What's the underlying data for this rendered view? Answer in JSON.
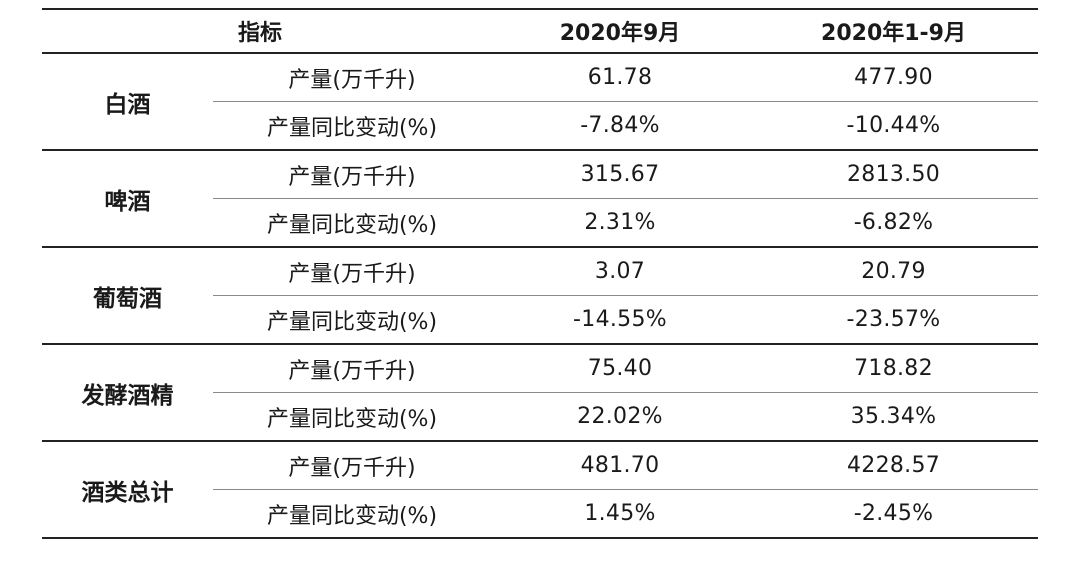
{
  "table": {
    "headers": [
      "指标",
      "2020年9月",
      "2020年1-9月"
    ],
    "groups": [
      {
        "category": "白酒",
        "rows": [
          {
            "metric": "产量(万千升)",
            "sep": "61.78",
            "ytd": "477.90"
          },
          {
            "metric": "产量同比变动(%)",
            "sep": "-7.84%",
            "ytd": "-10.44%"
          }
        ]
      },
      {
        "category": "啤酒",
        "rows": [
          {
            "metric": "产量(万千升)",
            "sep": "315.67",
            "ytd": "2813.50"
          },
          {
            "metric": "产量同比变动(%)",
            "sep": "2.31%",
            "ytd": "-6.82%"
          }
        ]
      },
      {
        "category": "葡萄酒",
        "rows": [
          {
            "metric": "产量(万千升)",
            "sep": "3.07",
            "ytd": "20.79"
          },
          {
            "metric": "产量同比变动(%)",
            "sep": "-14.55%",
            "ytd": "-23.57%"
          }
        ]
      },
      {
        "category": "发酵酒精",
        "rows": [
          {
            "metric": "产量(万千升)",
            "sep": "75.40",
            "ytd": "718.82"
          },
          {
            "metric": "产量同比变动(%)",
            "sep": "22.02%",
            "ytd": "35.34%"
          }
        ]
      },
      {
        "category": "酒类总计",
        "rows": [
          {
            "metric": "产量(万千升)",
            "sep": "481.70",
            "ytd": "4228.57"
          },
          {
            "metric": "产量同比变动(%)",
            "sep": "1.45%",
            "ytd": "-2.45%"
          }
        ]
      }
    ]
  }
}
